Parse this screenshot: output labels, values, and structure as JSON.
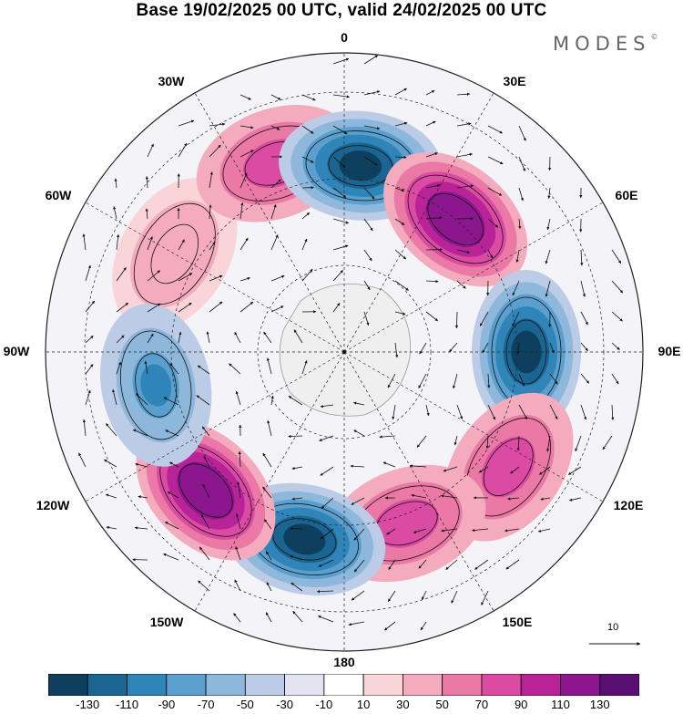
{
  "header": {
    "title": "Base 19/02/2025 00 UTC, valid 24/02/2025 00 UTC",
    "brand": "MODES",
    "brand_mark": "©"
  },
  "map": {
    "projection": "polar-stereographic",
    "hemisphere": "south",
    "center": "south-pole",
    "longitude_labels": [
      {
        "id": "lon-0",
        "text": "0"
      },
      {
        "id": "lon-30e",
        "text": "30E"
      },
      {
        "id": "lon-60e",
        "text": "60E"
      },
      {
        "id": "lon-90e",
        "text": "90E"
      },
      {
        "id": "lon-120e",
        "text": "120E"
      },
      {
        "id": "lon-150e",
        "text": "150E"
      },
      {
        "id": "lon-180",
        "text": "180"
      },
      {
        "id": "lon-150w",
        "text": "150W"
      },
      {
        "id": "lon-120w",
        "text": "120W"
      },
      {
        "id": "lon-90w",
        "text": "90W"
      },
      {
        "id": "lon-60w",
        "text": "60W"
      },
      {
        "id": "lon-30w",
        "text": "30W"
      }
    ],
    "anomaly_centers": [
      {
        "id": "anom-a",
        "sign": "positive",
        "lon": -60,
        "value": 50
      },
      {
        "id": "anom-b",
        "sign": "positive",
        "lon": -20,
        "value": 90
      },
      {
        "id": "anom-c",
        "sign": "negative",
        "lon": 5,
        "value": -130
      },
      {
        "id": "anom-d",
        "sign": "positive",
        "lon": 40,
        "value": 130
      },
      {
        "id": "anom-e",
        "sign": "negative",
        "lon": 90,
        "value": -130
      },
      {
        "id": "anom-f",
        "sign": "positive",
        "lon": 125,
        "value": 90
      },
      {
        "id": "anom-g",
        "sign": "positive",
        "lon": 160,
        "value": 90
      },
      {
        "id": "anom-h",
        "sign": "negative",
        "lon": -168,
        "value": -130
      },
      {
        "id": "anom-i",
        "sign": "positive",
        "lon": -135,
        "value": 130
      },
      {
        "id": "anom-j",
        "sign": "negative",
        "lon": -100,
        "value": -90
      }
    ],
    "reference_vector": {
      "label": "10"
    }
  },
  "colorbar": {
    "ticks": [
      "-130",
      "-110",
      "-90",
      "-70",
      "-50",
      "-30",
      "-10",
      "10",
      "30",
      "50",
      "70",
      "90",
      "110",
      "130"
    ],
    "colors": [
      "#0f3f5e",
      "#1b6593",
      "#2f85b8",
      "#5a9fcd",
      "#8db8dc",
      "#bccbe6",
      "#e2e2f0",
      "#ffffff",
      "#f9d5d7",
      "#f3abbd",
      "#ea79a6",
      "#dc4ba3",
      "#b82497",
      "#8c168d",
      "#5b0f73"
    ]
  }
}
